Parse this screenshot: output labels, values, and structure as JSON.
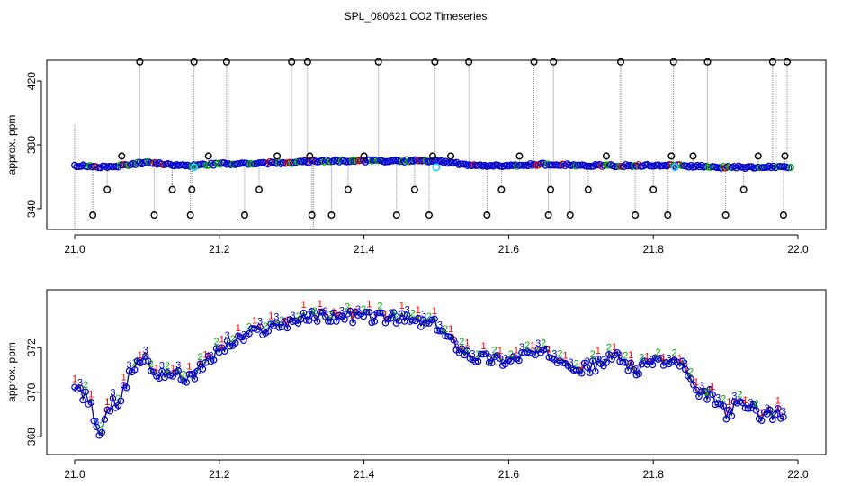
{
  "title": "SPL_080621  CO2 Timeseries",
  "chart_data": [
    {
      "type": "scatter",
      "ylabel": "approx. ppm",
      "xlim": [
        21.0,
        22.0
      ],
      "ylim": [
        327,
        433
      ],
      "xticks": [
        21.0,
        21.2,
        21.4,
        21.6,
        21.8,
        22.0
      ],
      "xtick_labels": [
        "21.0",
        "21.2",
        "21.4",
        "21.6",
        "21.8",
        "22.0"
      ],
      "yticks": [
        340,
        380,
        420
      ],
      "ytick_labels": [
        "340",
        "380",
        "420"
      ],
      "main_series": {
        "name": "CO2",
        "x": [
          21.0,
          21.05,
          21.08,
          21.1,
          21.15,
          21.16,
          21.2,
          21.3,
          21.33,
          21.4,
          21.5,
          21.55,
          21.6,
          21.66,
          21.7,
          21.8,
          21.83,
          21.9,
          21.95,
          21.99
        ],
        "y": [
          367,
          366,
          368,
          369,
          367,
          367,
          368,
          369,
          370,
          370,
          370,
          367,
          367,
          368,
          367,
          367,
          367,
          366,
          366,
          366
        ]
      },
      "calibration_points": {
        "x": [
          21.165,
          21.5,
          21.83
        ],
        "y": [
          366,
          366,
          366
        ]
      },
      "outlier_spikes": {
        "x": [
          21.025,
          21.045,
          21.065,
          21.09,
          21.11,
          21.135,
          21.16,
          21.162,
          21.165,
          21.185,
          21.21,
          21.235,
          21.255,
          21.28,
          21.3,
          21.322,
          21.325,
          21.328,
          21.355,
          21.378,
          21.4,
          21.42,
          21.445,
          21.47,
          21.49,
          21.495,
          21.498,
          21.52,
          21.545,
          21.57,
          21.59,
          21.615,
          21.635,
          21.655,
          21.658,
          21.662,
          21.685,
          21.71,
          21.735,
          21.755,
          21.775,
          21.8,
          21.82,
          21.825,
          21.828,
          21.855,
          21.875,
          21.9,
          21.925,
          21.945,
          21.965,
          21.98,
          21.982,
          21.985
        ],
        "y": [
          336,
          352,
          373,
          432,
          336,
          352,
          336,
          352,
          432,
          373,
          432,
          336,
          352,
          373,
          432,
          432,
          373,
          336,
          336,
          352,
          373,
          432,
          336,
          352,
          336,
          373,
          432,
          373,
          432,
          336,
          352,
          373,
          432,
          336,
          352,
          432,
          336,
          352,
          373,
          432,
          336,
          352,
          336,
          373,
          432,
          373,
          432,
          336,
          352,
          373,
          432,
          336,
          373,
          432
        ]
      }
    },
    {
      "type": "line",
      "ylabel": "approx. ppm",
      "xlim": [
        21.0,
        22.0
      ],
      "ylim": [
        367.2,
        374.6
      ],
      "xticks": [
        21.0,
        21.2,
        21.4,
        21.6,
        21.8,
        22.0
      ],
      "xtick_labels": [
        "21.0",
        "21.2",
        "21.4",
        "21.6",
        "21.8",
        "22.0"
      ],
      "yticks": [
        368,
        370,
        372
      ],
      "ytick_labels": [
        "368",
        "370",
        "372"
      ],
      "series": [
        {
          "name": "1",
          "label": "1",
          "color": "#ff0000",
          "offset": 0.1
        },
        {
          "name": "2",
          "label": "2",
          "color": "#00aa00",
          "offset": 0.05
        },
        {
          "name": "3",
          "label": "3",
          "color": "#0000cc",
          "offset": 0.0
        }
      ],
      "x": [
        21.0,
        21.02,
        21.035,
        21.05,
        21.065,
        21.08,
        21.09,
        21.1,
        21.11,
        21.13,
        21.15,
        21.17,
        21.2,
        21.25,
        21.3,
        21.33,
        21.4,
        21.45,
        21.5,
        21.52,
        21.55,
        21.6,
        21.62,
        21.65,
        21.68,
        21.7,
        21.72,
        21.75,
        21.78,
        21.8,
        21.82,
        21.84,
        21.86,
        21.88,
        21.9,
        21.92,
        21.95,
        21.98
      ],
      "y": [
        370.2,
        369.6,
        368.0,
        369.4,
        369.8,
        371.1,
        371.4,
        371.5,
        370.8,
        370.9,
        370.6,
        370.9,
        371.9,
        372.7,
        373.2,
        373.4,
        373.4,
        373.3,
        373.0,
        372.3,
        371.6,
        371.4,
        371.7,
        371.7,
        371.5,
        371.0,
        371.2,
        371.6,
        370.9,
        371.5,
        371.3,
        371.3,
        369.8,
        369.9,
        369.0,
        369.5,
        369.0,
        369.0
      ]
    }
  ]
}
